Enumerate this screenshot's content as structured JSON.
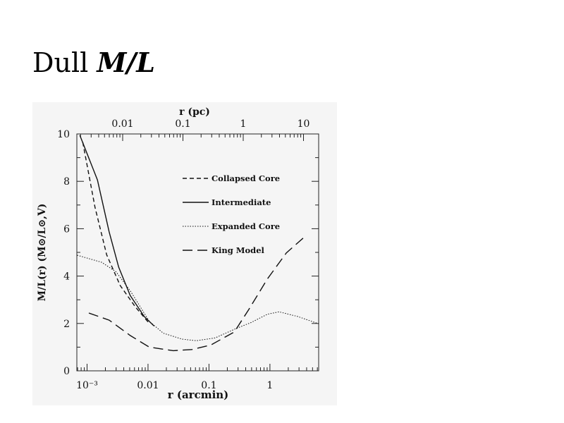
{
  "slide": {
    "title_prefix": "Dull",
    "title_math": "M/L"
  },
  "chart_data": {
    "type": "line",
    "xlabel": "r (arcmin)",
    "ylabel": "M/L(r)  (M⊙/L⊙,V)",
    "top_xlabel": "r (pc)",
    "xscale": "log",
    "xlim": [
      0.00068,
      6.3
    ],
    "ylim": [
      0,
      10
    ],
    "x_ticks": [
      {
        "v": 0.001,
        "label": "10⁻³"
      },
      {
        "v": 0.01,
        "label": "0.01"
      },
      {
        "v": 0.1,
        "label": "0.1"
      },
      {
        "v": 1,
        "label": "1"
      }
    ],
    "top_ticks": [
      {
        "label": "0.01"
      },
      {
        "label": "0.1"
      },
      {
        "label": "1"
      },
      {
        "label": "10"
      }
    ],
    "y_ticks": [
      0,
      2,
      4,
      6,
      8,
      10
    ],
    "legend_position": "upper-right",
    "series": [
      {
        "name": "Collapsed Core",
        "dash": "short",
        "x": [
          0.00085,
          0.00135,
          0.0021,
          0.0035,
          0.0062,
          0.0105
        ],
        "y": [
          9.65,
          6.9,
          4.9,
          3.6,
          2.7,
          2.0
        ]
      },
      {
        "name": "Intermediate",
        "dash": "solid",
        "x": [
          0.00076,
          0.00148,
          0.0023,
          0.0033,
          0.0051,
          0.0087,
          0.0126
        ],
        "y": [
          9.95,
          8.06,
          5.87,
          4.38,
          3.18,
          2.29,
          1.89
        ]
      },
      {
        "name": "Expanded Core",
        "dash": "dotted",
        "x": [
          0.00069,
          0.00174,
          0.003,
          0.0051,
          0.0105,
          0.0178,
          0.036,
          0.062,
          0.126,
          0.28,
          0.49,
          0.91,
          1.41,
          2.9,
          6.2
        ],
        "y": [
          4.88,
          4.58,
          4.18,
          3.38,
          2.09,
          1.59,
          1.34,
          1.27,
          1.39,
          1.79,
          2.04,
          2.39,
          2.49,
          2.29,
          1.99
        ]
      },
      {
        "name": "King Model",
        "dash": "long",
        "x": [
          0.00107,
          0.0023,
          0.0051,
          0.0105,
          0.026,
          0.052,
          0.107,
          0.26,
          0.45,
          0.91,
          1.86,
          3.5
        ],
        "y": [
          2.44,
          2.14,
          1.49,
          1.0,
          0.85,
          0.9,
          1.09,
          1.64,
          2.59,
          3.88,
          4.98,
          5.6
        ]
      }
    ]
  }
}
